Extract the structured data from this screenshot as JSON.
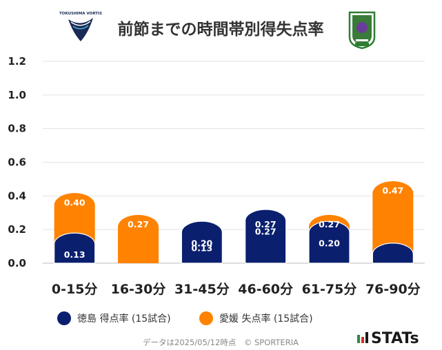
{
  "title": "前節までの時間帯別得失点率",
  "home_logo_text": "TOKUSHIMA VORTIS",
  "chart_data": {
    "type": "bar",
    "title": "前節までの時間帯別得失点率",
    "categories": [
      "0-15分",
      "16-30分",
      "31-45分",
      "46-60分",
      "61-75分",
      "76-90分"
    ],
    "series": [
      {
        "name": "徳島 得点率 (15試合)",
        "color": "#0a1f6e",
        "values": [
          0.13,
          0.0,
          0.2,
          0.27,
          0.2,
          0.07
        ],
        "labels": [
          "0.13",
          "",
          "0.20",
          "0.27",
          "0.20",
          ""
        ]
      },
      {
        "name": "愛媛 失点率 (15試合)",
        "color": "#ff8200",
        "values": [
          0.4,
          0.27,
          0.13,
          0.27,
          0.27,
          0.47
        ],
        "labels": [
          "0.40",
          "0.27",
          "0.13",
          "0.27",
          "0.27",
          "0.47"
        ]
      }
    ],
    "yticks": [
      "0.0",
      "0.2",
      "0.4",
      "0.6",
      "0.8",
      "1.0",
      "1.2"
    ],
    "ylim": [
      0,
      1.2
    ],
    "grid": true,
    "legend_position": "bottom"
  },
  "footer": "データは2025/05/12時点　© SPORTERIA",
  "brand": "STATs"
}
